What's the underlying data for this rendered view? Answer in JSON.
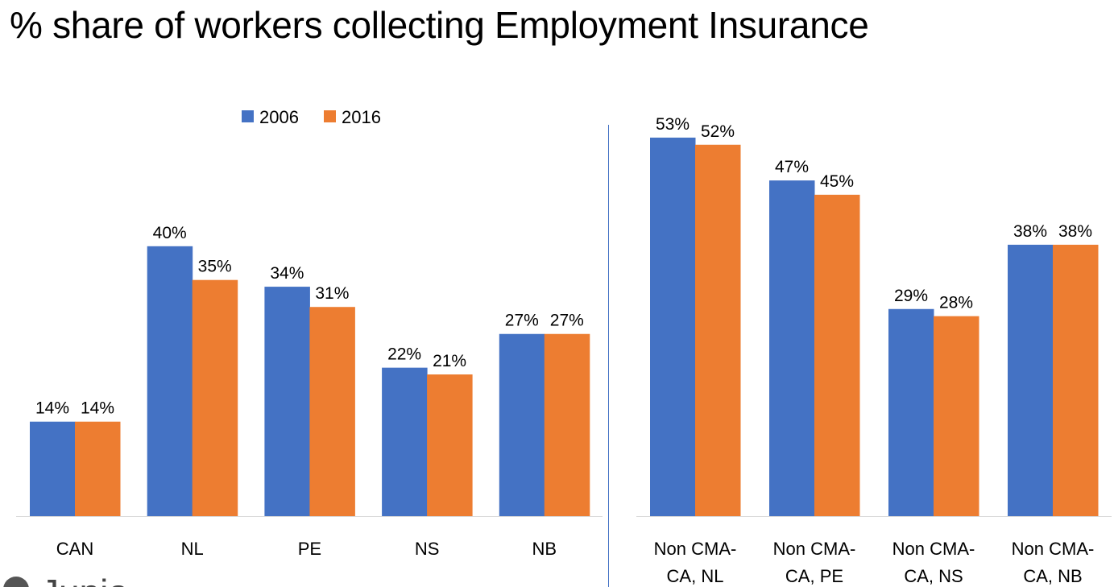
{
  "title": "% share of workers collecting Employment Insurance",
  "logo_text": "Jupia",
  "colors": {
    "2006": "#4472C4",
    "2016": "#ED7D31",
    "axis": "#D9D9D9",
    "divider": "#4472C4"
  },
  "chart_data": [
    {
      "type": "bar",
      "categories": [
        "CAN",
        "NL",
        "PE",
        "NS",
        "NB"
      ],
      "series": [
        {
          "name": "2006",
          "values": [
            14,
            40,
            34,
            22,
            27
          ],
          "labels": [
            "14%",
            "40%",
            "34%",
            "22%",
            "27%"
          ]
        },
        {
          "name": "2016",
          "values": [
            14,
            35,
            31,
            21,
            27
          ],
          "labels": [
            "14%",
            "35%",
            "31%",
            "21%",
            "27%"
          ]
        }
      ],
      "legend": "top",
      "grid": false,
      "ylim": [
        0,
        48
      ]
    },
    {
      "type": "bar",
      "categories": [
        [
          "Non CMA-",
          "CA, NL"
        ],
        [
          "Non CMA-",
          "CA, PE"
        ],
        [
          "Non CMA-",
          "CA, NS"
        ],
        [
          "Non CMA-",
          "CA, NB"
        ]
      ],
      "series": [
        {
          "name": "2006",
          "values": [
            53,
            47,
            29,
            38
          ],
          "labels": [
            "53%",
            "47%",
            "29%",
            "38%"
          ]
        },
        {
          "name": "2016",
          "values": [
            52,
            45,
            28,
            38
          ],
          "labels": [
            "52%",
            "45%",
            "28%",
            "38%"
          ]
        }
      ],
      "legend": "none",
      "grid": false,
      "ylim": [
        0,
        56
      ]
    }
  ]
}
